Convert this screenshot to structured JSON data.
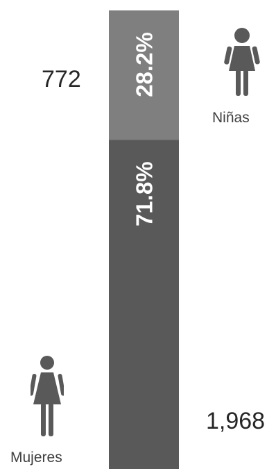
{
  "chart_data": {
    "type": "bar",
    "orientation": "vertical-stacked",
    "categories": [
      "Niñas",
      "Mujeres"
    ],
    "counts": [
      772,
      1968
    ],
    "count_labels": [
      "772",
      "1,968"
    ],
    "shares": [
      28.2,
      71.8
    ],
    "share_labels": [
      "28.2%",
      "71.8%"
    ],
    "colors": [
      "#7f7f7f",
      "#595959"
    ],
    "icons": [
      "girl-icon",
      "woman-icon"
    ]
  }
}
